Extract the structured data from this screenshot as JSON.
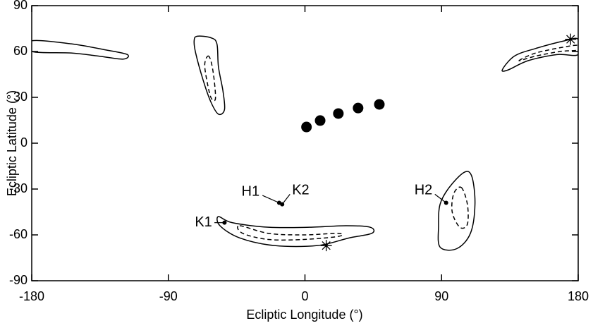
{
  "chart_data": {
    "type": "scatter",
    "x_label": "Ecliptic Longitude (°)",
    "y_label": "Ecliptic Latitude  (°)",
    "xlim": [
      -180,
      180
    ],
    "ylim": [
      -90,
      90
    ],
    "xticks": [
      -180,
      -90,
      0,
      90,
      180
    ],
    "yticks": [
      -90,
      -60,
      -30,
      0,
      30,
      60,
      90
    ],
    "color": "#000000",
    "dots": {
      "x": [
        1,
        10,
        22,
        35,
        49
      ],
      "y": [
        10.6,
        14.8,
        19.4,
        23,
        25.4
      ]
    },
    "stars": {
      "x": [
        14,
        175
      ],
      "y": [
        -67,
        68
      ]
    },
    "points": [
      {
        "label": "H1",
        "x": -17,
        "y": -39
      },
      {
        "label": "K2",
        "x": -15,
        "y": -40
      },
      {
        "label": "K1",
        "x": -53,
        "y": -52
      },
      {
        "label": "H2",
        "x": 93,
        "y": -39
      }
    ],
    "contours": [
      {
        "style": "solid",
        "x": [
          -180,
          -154,
          -131,
          -117,
          -120,
          -136,
          -154,
          -180
        ],
        "y": [
          67,
          65,
          61,
          58,
          55,
          57,
          59,
          60
        ]
      },
      {
        "style": "solid",
        "x": [
          -71,
          -62,
          -58,
          -57,
          -54,
          -53,
          -57,
          -62,
          -67,
          -72,
          -73
        ],
        "y": [
          70,
          69,
          65,
          50,
          34,
          22,
          19,
          27,
          41,
          59,
          67
        ]
      },
      {
        "style": "dashed",
        "x": [
          -64,
          -62,
          -60,
          -59,
          -62,
          -65,
          -66
        ],
        "y": [
          57,
          54,
          43,
          29,
          30,
          43,
          52
        ]
      },
      {
        "style": "solid",
        "x": [
          130,
          138,
          152,
          171,
          180,
          180,
          166,
          147,
          134
        ],
        "y": [
          48,
          57,
          62,
          67,
          68,
          58,
          58,
          54,
          48
        ]
      },
      {
        "style": "dashed",
        "x": [
          141,
          152,
          171,
          180,
          180,
          168,
          152
        ],
        "y": [
          54,
          59,
          63,
          64,
          61,
          60,
          57
        ]
      },
      {
        "style": "solid",
        "x": [
          -57,
          -48,
          -24,
          3,
          27,
          43,
          44,
          29,
          8,
          -20,
          -43,
          -56
        ],
        "y": [
          -48,
          -52,
          -55,
          -55,
          -54,
          -55,
          -59,
          -62,
          -67,
          -67,
          -62,
          -54
        ]
      },
      {
        "style": "dashed",
        "x": [
          -43,
          -24,
          -1,
          22,
          22,
          -1,
          -24,
          -41
        ],
        "y": [
          -54,
          -59,
          -60,
          -59,
          -61,
          -63,
          -63,
          -59
        ]
      },
      {
        "style": "solid",
        "x": [
          105,
          110,
          112,
          109,
          100,
          89,
          88,
          89,
          95
        ],
        "y": [
          -19,
          -22,
          -40,
          -59,
          -69,
          -68,
          -54,
          -40,
          -29
        ]
      },
      {
        "style": "dashed",
        "x": [
          103,
          107,
          107,
          102,
          97,
          98
        ],
        "y": [
          -29,
          -40,
          -53,
          -55,
          -45,
          -33
        ]
      }
    ]
  }
}
